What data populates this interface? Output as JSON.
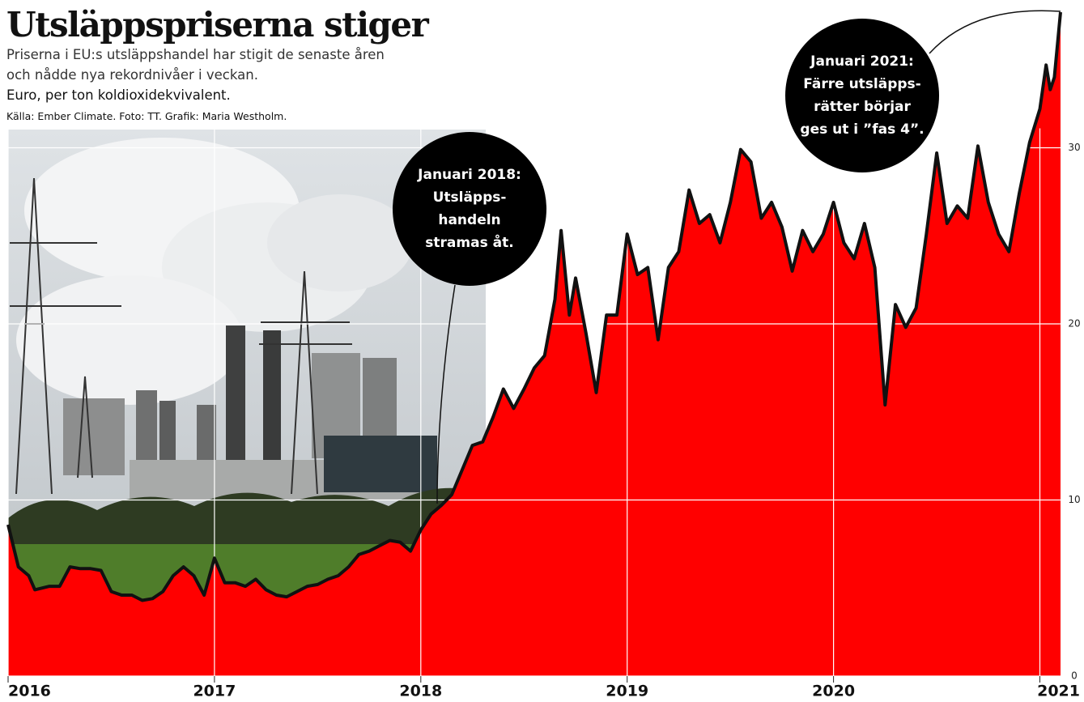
{
  "chart_data": {
    "type": "area",
    "title": "Utsläppspriserna stiger",
    "subtitle": [
      "Priserna i EU:s utsläppshandel har stigit de senaste åren",
      "och nådde nya rekordnivåer i veckan."
    ],
    "unit": "Euro, per ton koldioxidekvivalent.",
    "source": "Källa: Ember Climate. Foto: TT. Grafik: Maria Westholm.",
    "annotations": [
      {
        "lines": [
          "Januari 2018:",
          "Utsläpps-",
          "handeln",
          "stramas åt."
        ]
      },
      {
        "lines": [
          "Januari 2021:",
          "Färre utsläpps-",
          "rätter börjar",
          "ges ut i ”fas 4”."
        ]
      }
    ],
    "x": [
      2016.0,
      2016.05,
      2016.1,
      2016.13,
      2016.2,
      2016.25,
      2016.3,
      2016.35,
      2016.4,
      2016.45,
      2016.5,
      2016.55,
      2016.6,
      2016.65,
      2016.7,
      2016.75,
      2016.8,
      2016.85,
      2016.9,
      2016.95,
      2017.0,
      2017.05,
      2017.1,
      2017.15,
      2017.2,
      2017.25,
      2017.3,
      2017.35,
      2017.4,
      2017.45,
      2017.5,
      2017.55,
      2017.6,
      2017.65,
      2017.7,
      2017.75,
      2017.8,
      2017.85,
      2017.9,
      2017.95,
      2018.0,
      2018.05,
      2018.1,
      2018.15,
      2018.2,
      2018.25,
      2018.3,
      2018.35,
      2018.4,
      2018.45,
      2018.5,
      2018.55,
      2018.6,
      2018.65,
      2018.68,
      2018.72,
      2018.75,
      2018.8,
      2018.85,
      2018.9,
      2018.95,
      2019.0,
      2019.05,
      2019.1,
      2019.15,
      2019.2,
      2019.25,
      2019.3,
      2019.35,
      2019.4,
      2019.45,
      2019.5,
      2019.55,
      2019.6,
      2019.65,
      2019.7,
      2019.75,
      2019.8,
      2019.85,
      2019.9,
      2019.95,
      2020.0,
      2020.05,
      2020.1,
      2020.15,
      2020.2,
      2020.25,
      2020.3,
      2020.35,
      2020.4,
      2020.45,
      2020.5,
      2020.55,
      2020.6,
      2020.65,
      2020.7,
      2020.75,
      2020.8,
      2020.85,
      2020.9,
      2020.95,
      2021.0,
      2021.03,
      2021.05,
      2021.07,
      2021.1
    ],
    "values": [
      8.6,
      6.2,
      5.7,
      4.9,
      5.1,
      5.1,
      6.2,
      6.1,
      6.1,
      6.0,
      4.8,
      4.6,
      4.6,
      4.3,
      4.4,
      4.8,
      5.7,
      6.2,
      5.7,
      4.6,
      6.7,
      5.3,
      5.3,
      5.1,
      5.5,
      4.9,
      4.6,
      4.5,
      4.8,
      5.1,
      5.2,
      5.5,
      5.7,
      6.2,
      6.9,
      7.1,
      7.4,
      7.7,
      7.6,
      7.1,
      8.3,
      9.2,
      9.7,
      10.3,
      11.7,
      13.1,
      13.3,
      14.7,
      16.3,
      15.2,
      16.3,
      17.5,
      18.2,
      21.4,
      25.3,
      20.5,
      22.6,
      19.5,
      16.1,
      20.5,
      20.5,
      25.1,
      22.8,
      23.2,
      19.1,
      23.2,
      24.1,
      27.6,
      25.7,
      26.2,
      24.6,
      26.9,
      29.9,
      29.2,
      26.0,
      26.9,
      25.5,
      23.0,
      25.3,
      24.1,
      25.1,
      26.9,
      24.6,
      23.7,
      25.7,
      23.2,
      15.4,
      21.1,
      19.8,
      20.9,
      25.1,
      29.7,
      25.7,
      26.7,
      26.0,
      30.1,
      26.9,
      25.1,
      24.1,
      27.4,
      30.3,
      32.2,
      34.7,
      33.3,
      34.0,
      37.7
    ],
    "color": "#ff0000",
    "line_color": "#111111",
    "xlim": [
      2016,
      2021.1
    ],
    "ylim": [
      0,
      38
    ],
    "xticks": [
      2016,
      2017,
      2018,
      2019,
      2020,
      2021
    ],
    "yticks": [
      0,
      10,
      20,
      30
    ],
    "grid": true
  }
}
